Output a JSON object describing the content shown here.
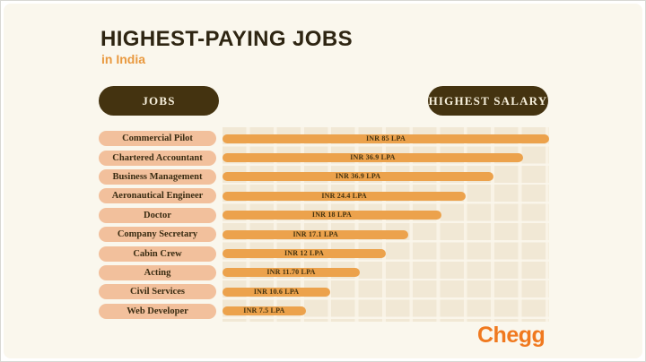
{
  "header": {
    "title": "HIGHEST-PAYING JOBS",
    "subtitle": "in India"
  },
  "columns": {
    "jobs_label": "JOBS",
    "salary_label": "HIGHEST SALARY"
  },
  "chart_data": {
    "type": "bar",
    "orientation": "horizontal",
    "title": "HIGHEST-PAYING JOBS in India",
    "unit": "INR LPA",
    "grid": true,
    "legend_position": "none",
    "categories": [
      "Commercial Pilot",
      "Chartered Accountant",
      "Business Management",
      "Aeronautical Engineer",
      "Doctor",
      "Company Secretary",
      "Cabin Crew",
      "Acting",
      "Civil Services",
      "Web Developer"
    ],
    "values": [
      85,
      36.9,
      36.9,
      24.4,
      18,
      17.1,
      12,
      11.7,
      10.6,
      7.5
    ],
    "value_labels": [
      "INR 85 LPA",
      "INR 36.9 LPA",
      "INR 36.9 LPA",
      "INR 24.4 LPA",
      "INR 18 LPA",
      "INR 17.1 LPA",
      "INR 12 LPA",
      "INR 11.70 LPA",
      "INR 10.6 LPA",
      "INR 7.5 LPA"
    ],
    "bar_fractions": [
      1.0,
      0.92,
      0.83,
      0.745,
      0.67,
      0.57,
      0.5,
      0.42,
      0.33,
      0.255
    ]
  },
  "branding": {
    "logo_text": "Chegg"
  },
  "colors": {
    "background": "#FAF7ED",
    "title_dark": "#2E2512",
    "subtitle_orange": "#E9993F",
    "header_pill_dark": "#443310",
    "header_pill_text": "#F7F0DC",
    "job_pill_peach": "#F2C09C",
    "bar_orange": "#ECA24C",
    "grid_stripe": "#F1E8D5",
    "chegg_orange": "#F0791F"
  }
}
